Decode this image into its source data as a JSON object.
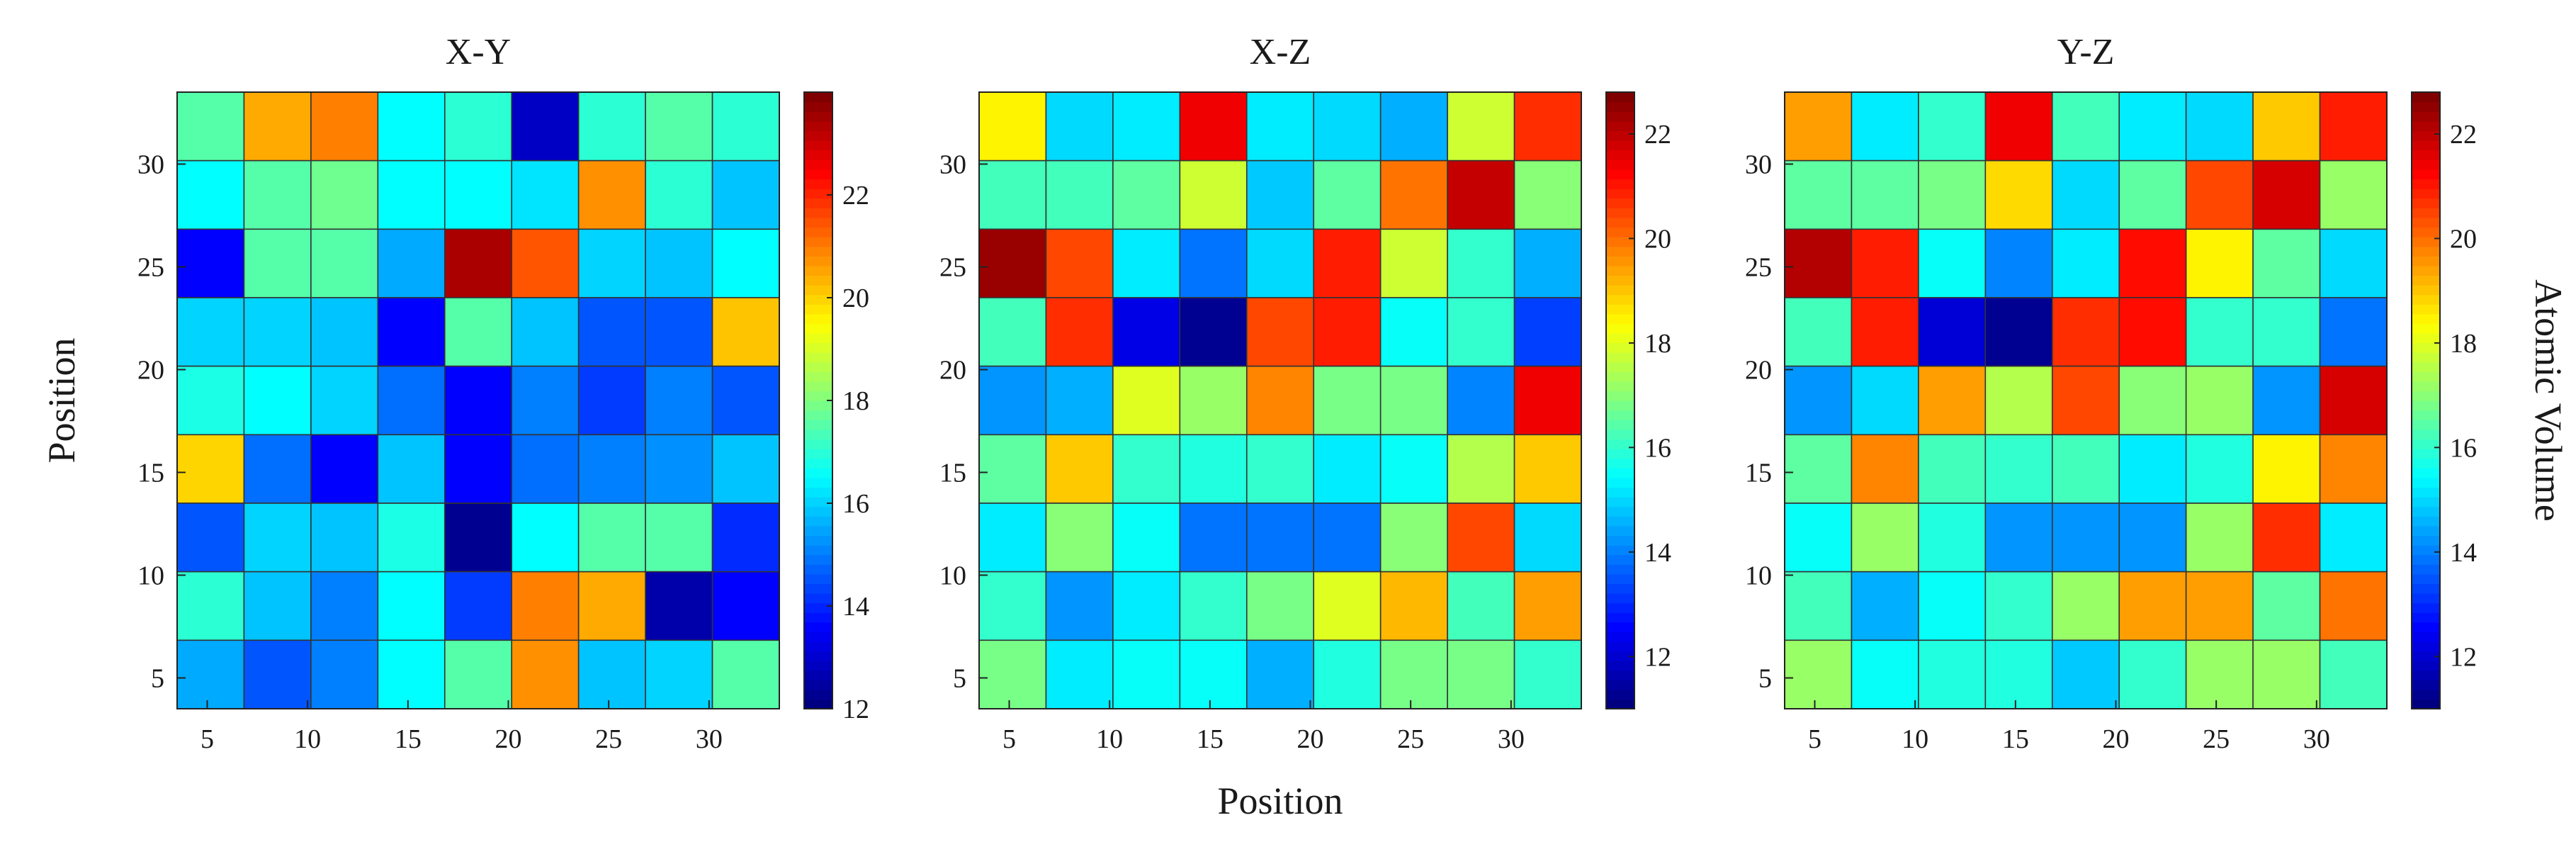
{
  "chart_data": [
    {
      "type": "heatmap",
      "title": "X-Y",
      "xlabel": "",
      "ylabel": "Position",
      "x_ticks": [
        5,
        10,
        15,
        20,
        25,
        30
      ],
      "y_ticks": [
        5,
        10,
        15,
        20,
        25,
        30
      ],
      "xlim": [
        3.5,
        33.5
      ],
      "ylim": [
        3.5,
        33.5
      ],
      "cell_centers": [
        5.17,
        8.5,
        11.83,
        15.17,
        18.5,
        21.83,
        25.17,
        28.5,
        31.83
      ],
      "colorbar": {
        "ticks": [
          12,
          14,
          16,
          18,
          20,
          22
        ],
        "range": [
          12,
          24
        ],
        "label": ""
      },
      "values_rows_top_to_bottom": [
        [
          17.5,
          20.5,
          21.0,
          16.5,
          17.0,
          12.8,
          17.0,
          17.5,
          17.0
        ],
        [
          16.5,
          17.5,
          17.8,
          16.5,
          16.5,
          16.2,
          20.8,
          17.0,
          15.8
        ],
        [
          13.5,
          17.5,
          17.5,
          15.5,
          23.5,
          21.5,
          16.0,
          15.8,
          16.5
        ],
        [
          16.0,
          16.0,
          15.8,
          13.5,
          17.5,
          15.8,
          14.5,
          14.5,
          20.2
        ],
        [
          16.8,
          16.5,
          16.0,
          14.8,
          13.5,
          15.0,
          14.2,
          15.0,
          14.5
        ],
        [
          20.0,
          14.8,
          13.5,
          15.8,
          13.5,
          14.8,
          15.0,
          15.2,
          15.8
        ],
        [
          14.5,
          16.0,
          15.8,
          16.8,
          12.2,
          16.5,
          17.5,
          17.5,
          14.0
        ],
        [
          17.0,
          15.8,
          15.0,
          16.5,
          14.2,
          21.0,
          20.5,
          12.5,
          13.5
        ],
        [
          15.5,
          14.5,
          15.0,
          16.5,
          17.5,
          20.8,
          15.8,
          16.0,
          17.5
        ]
      ]
    },
    {
      "type": "heatmap",
      "title": "X-Z",
      "xlabel": "Position",
      "ylabel": "",
      "x_ticks": [
        5,
        10,
        15,
        20,
        25,
        30
      ],
      "y_ticks": [
        5,
        10,
        15,
        20,
        25,
        30
      ],
      "xlim": [
        3.5,
        33.5
      ],
      "ylim": [
        3.5,
        33.5
      ],
      "cell_centers": [
        5.17,
        8.5,
        11.83,
        15.17,
        18.5,
        21.83,
        25.17,
        28.5,
        31.83
      ],
      "colorbar": {
        "ticks": [
          12,
          14,
          16,
          18,
          20,
          22
        ],
        "range": [
          11,
          22.8
        ],
        "label": ""
      },
      "values_rows_top_to_bottom": [
        [
          18.5,
          15.0,
          15.2,
          21.5,
          15.2,
          15.0,
          14.5,
          17.8,
          20.8
        ],
        [
          16.2,
          16.2,
          16.5,
          17.8,
          14.8,
          16.5,
          20.0,
          22.0,
          17.0
        ],
        [
          22.5,
          20.5,
          15.2,
          13.8,
          15.0,
          21.0,
          17.8,
          16.0,
          14.5
        ],
        [
          16.2,
          20.8,
          12.2,
          11.2,
          20.5,
          21.0,
          15.5,
          16.0,
          13.2
        ],
        [
          14.2,
          14.5,
          18.0,
          17.2,
          19.8,
          16.8,
          16.8,
          14.0,
          21.5
        ],
        [
          16.5,
          19.0,
          16.0,
          15.8,
          16.0,
          15.2,
          15.5,
          17.5,
          19.0
        ],
        [
          15.2,
          17.0,
          15.5,
          13.8,
          13.8,
          13.8,
          17.0,
          20.5,
          15.0
        ],
        [
          16.0,
          14.2,
          15.2,
          16.0,
          16.8,
          18.0,
          19.2,
          16.2,
          19.5
        ],
        [
          16.8,
          15.2,
          15.5,
          15.5,
          14.5,
          15.8,
          16.8,
          16.8,
          16.0
        ]
      ]
    },
    {
      "type": "heatmap",
      "title": "Y-Z",
      "xlabel": "",
      "ylabel": "",
      "x_ticks": [
        5,
        10,
        15,
        20,
        25,
        30
      ],
      "y_ticks": [
        5,
        10,
        15,
        20,
        25,
        30
      ],
      "xlim": [
        3.5,
        33.5
      ],
      "ylim": [
        3.5,
        33.5
      ],
      "cell_centers": [
        5.17,
        8.5,
        11.83,
        15.17,
        18.5,
        21.83,
        25.17,
        28.5,
        31.83
      ],
      "colorbar": {
        "ticks": [
          12,
          14,
          16,
          18,
          20,
          22
        ],
        "range": [
          11,
          22.8
        ],
        "label": "Atomic Volume"
      },
      "values_rows_top_to_bottom": [
        [
          19.5,
          15.2,
          16.0,
          21.5,
          16.2,
          15.2,
          15.0,
          19.0,
          21.0
        ],
        [
          16.5,
          16.5,
          16.8,
          18.8,
          15.0,
          16.5,
          20.5,
          21.8,
          17.2
        ],
        [
          22.2,
          21.0,
          15.5,
          14.0,
          15.2,
          21.2,
          18.5,
          16.5,
          15.0
        ],
        [
          16.2,
          21.0,
          12.0,
          11.2,
          20.8,
          21.2,
          16.0,
          16.0,
          13.8
        ],
        [
          14.2,
          15.0,
          19.5,
          17.5,
          20.5,
          17.0,
          17.2,
          14.2,
          21.8
        ],
        [
          16.5,
          19.8,
          16.2,
          16.0,
          16.2,
          15.2,
          15.8,
          18.5,
          19.8
        ],
        [
          15.5,
          17.2,
          15.8,
          14.2,
          14.2,
          14.2,
          17.2,
          20.8,
          15.2
        ],
        [
          16.2,
          14.5,
          15.5,
          16.0,
          17.2,
          19.5,
          19.5,
          16.5,
          20.0
        ],
        [
          17.2,
          15.5,
          15.8,
          15.8,
          14.8,
          16.0,
          17.2,
          17.2,
          16.2
        ]
      ]
    }
  ]
}
